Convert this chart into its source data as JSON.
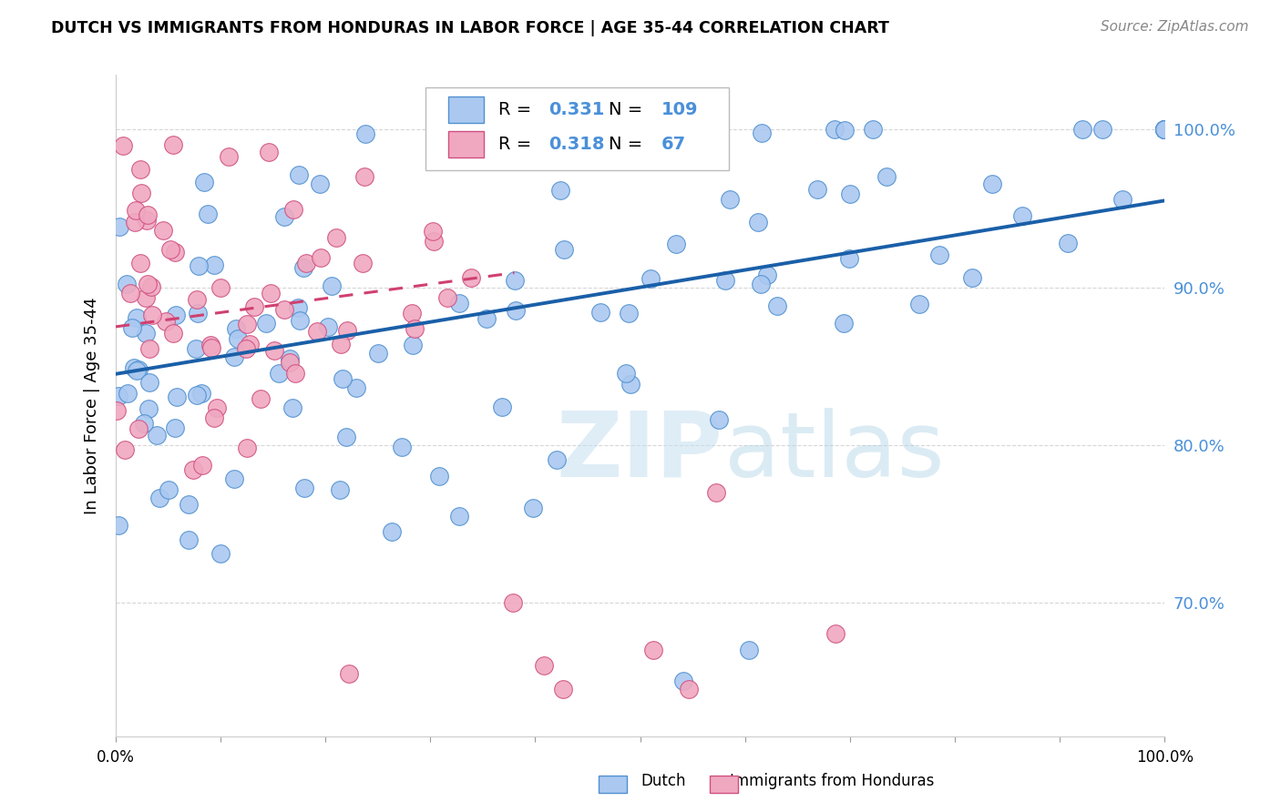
{
  "title": "DUTCH VS IMMIGRANTS FROM HONDURAS IN LABOR FORCE | AGE 35-44 CORRELATION CHART",
  "source": "Source: ZipAtlas.com",
  "ylabel": "In Labor Force | Age 35-44",
  "ytick_labels": [
    "70.0%",
    "80.0%",
    "90.0%",
    "100.0%"
  ],
  "ytick_values": [
    0.7,
    0.8,
    0.9,
    1.0
  ],
  "xlim": [
    0.0,
    1.0
  ],
  "ylim": [
    0.615,
    1.035
  ],
  "dutch_R": 0.331,
  "dutch_N": 109,
  "honduras_R": 0.318,
  "honduras_N": 67,
  "dutch_color": "#aac8f0",
  "dutch_edge": "#5090d0",
  "honduras_color": "#f0a8c0",
  "honduras_edge": "#d05080",
  "trend_dutch_color": "#1a5fa8",
  "trend_honduras_color": "#d04070",
  "watermark_zip": "ZIP",
  "watermark_atlas": "atlas",
  "background_color": "#ffffff",
  "grid_color": "#cccccc",
  "ytick_color": "#4a90d9",
  "legend_box_color": "#bbbbbb"
}
